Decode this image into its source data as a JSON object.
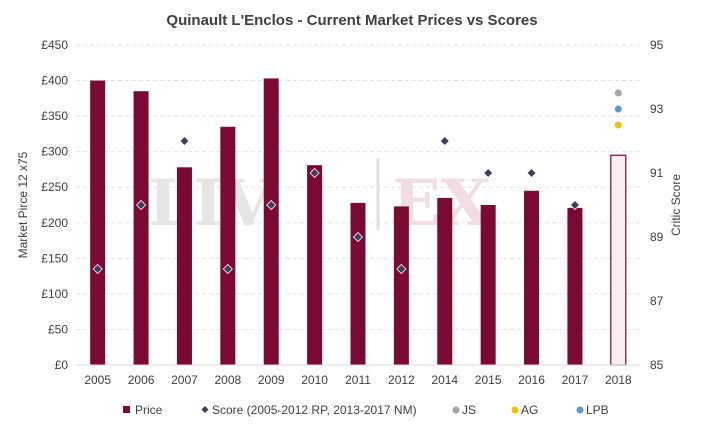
{
  "watermark": {
    "left": "LIV",
    "right": "EX"
  },
  "chart_data": {
    "type": "bar",
    "title": "Quinault L'Enclos - Current Market Prices vs Scores",
    "ylabel": "Market Pirce 12 x75",
    "ylabel2": "Critic Score",
    "ylim": [
      0,
      450
    ],
    "ylim2": [
      85,
      95
    ],
    "yticks": [
      "£0",
      "£50",
      "£100",
      "£150",
      "£200",
      "£250",
      "£300",
      "£350",
      "£400",
      "£450"
    ],
    "yticks_values": [
      0,
      50,
      100,
      150,
      200,
      250,
      300,
      350,
      400,
      450
    ],
    "y2ticks": [
      "85",
      "87",
      "89",
      "91",
      "93",
      "95"
    ],
    "y2ticks_values": [
      85,
      87,
      89,
      91,
      93,
      95
    ],
    "grid": true,
    "legend_position": "bottom",
    "categories": [
      "2005",
      "2006",
      "2007",
      "2008",
      "2009",
      "2010",
      "2011",
      "2012",
      "2014",
      "2015",
      "2016",
      "2017",
      "2018"
    ],
    "series": [
      {
        "name": "Price",
        "kind": "bar",
        "color": "#7a0a33",
        "values": [
          400,
          385,
          278,
          335,
          403,
          281,
          228,
          223,
          235,
          225,
          245,
          221,
          295
        ],
        "hollow_last": true
      },
      {
        "name": "Score (2005-2012 RP, 2013-2017 NM)",
        "kind": "marker",
        "axis": "right",
        "color": "#3d3d5c",
        "values": [
          88,
          90,
          92,
          88,
          90,
          91,
          89,
          88,
          92,
          91,
          91,
          90,
          null
        ]
      },
      {
        "name": "JS",
        "kind": "point",
        "axis": "right",
        "color": "#a5a5a5",
        "category": "2018",
        "value": 93.5
      },
      {
        "name": "AG",
        "kind": "point",
        "axis": "right",
        "color": "#f5c000",
        "category": "2018",
        "value": 92.5
      },
      {
        "name": "LPB",
        "kind": "point",
        "axis": "right",
        "color": "#5b9bd5",
        "category": "2018",
        "value": 93
      }
    ]
  }
}
